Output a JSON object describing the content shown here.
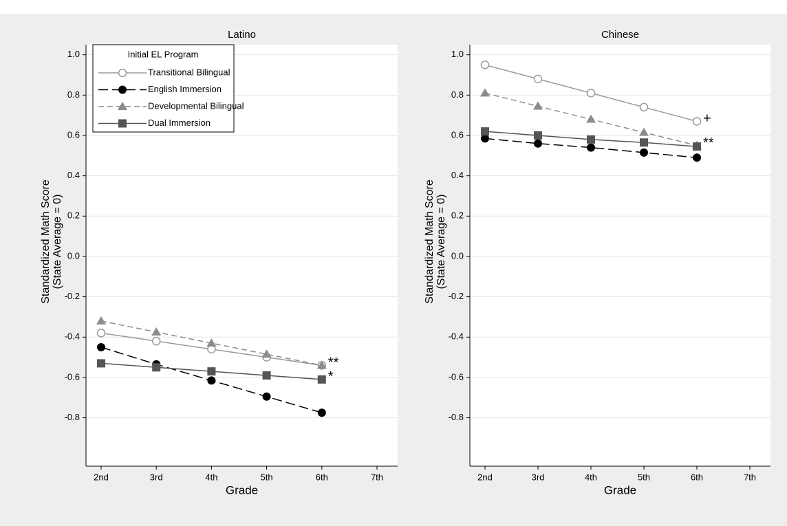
{
  "chart_data": [
    {
      "type": "line",
      "title": "Latino",
      "x_label": "Grade",
      "y_label": [
        "Standardized Math Score",
        "(State Average = 0)"
      ],
      "categories": [
        "2nd",
        "3rd",
        "4th",
        "5th",
        "6th",
        "7th"
      ],
      "ylim": [
        -1.04,
        1.05
      ],
      "yticks": [
        {
          "value": 1,
          "label": "1.0"
        },
        0.8,
        0.6,
        0.4,
        0.2,
        {
          "value": 0,
          "label": "0.0"
        },
        -0.2,
        -0.4,
        -0.6,
        -0.8
      ],
      "grid": true,
      "legend": {
        "title": "Initial EL Program",
        "position": "upper left"
      },
      "series": [
        {
          "name": "Transitional Bilingual",
          "color": "#999999",
          "marker": "hollow-circle",
          "dash": "solid",
          "values": [
            -0.38,
            -0.42,
            -0.46,
            -0.5,
            -0.54,
            null
          ],
          "annotation": "**"
        },
        {
          "name": "English Immersion",
          "color": "#000000",
          "marker": "circle",
          "dash": "long",
          "values": [
            -0.45,
            -0.535,
            -0.615,
            -0.695,
            -0.775,
            null
          ]
        },
        {
          "name": "Developmental Bilingual",
          "color": "#8c8c8c",
          "marker": "triangle",
          "dash": "short",
          "values": [
            -0.32,
            -0.375,
            -0.43,
            -0.485,
            -0.54,
            null
          ]
        },
        {
          "name": "Dual Immersion",
          "color": "#555555",
          "marker": "square",
          "dash": "solid",
          "values": [
            -0.53,
            -0.55,
            -0.57,
            -0.59,
            -0.61,
            null
          ],
          "annotation": "*"
        }
      ]
    },
    {
      "type": "line",
      "title": "Chinese",
      "x_label": "Grade",
      "y_label": [
        "Standardized Math Score",
        "(State Average = 0)"
      ],
      "categories": [
        "2nd",
        "3rd",
        "4th",
        "5th",
        "6th",
        "7th"
      ],
      "ylim": [
        -1.04,
        1.05
      ],
      "yticks": [
        {
          "value": 1,
          "label": "1.0"
        },
        0.8,
        0.6,
        0.4,
        0.2,
        {
          "value": 0,
          "label": "0.0"
        },
        -0.2,
        -0.4,
        -0.6,
        -0.8
      ],
      "grid": true,
      "series": [
        {
          "color": "#999999",
          "marker": "hollow-circle",
          "dash": "solid",
          "values": [
            0.95,
            0.88,
            0.81,
            0.74,
            0.67,
            null
          ],
          "annotation": "+"
        },
        {
          "color": "#000000",
          "marker": "circle",
          "dash": "long",
          "values": [
            0.585,
            0.56,
            0.54,
            0.515,
            0.49,
            null
          ]
        },
        {
          "color": "#8c8c8c",
          "marker": "triangle",
          "dash": "short",
          "values": [
            0.81,
            0.745,
            0.68,
            0.615,
            0.55,
            null
          ],
          "annotation": "**"
        },
        {
          "color": "#555555",
          "marker": "square",
          "dash": "solid",
          "values": [
            0.62,
            0.6,
            0.58,
            0.565,
            0.545,
            null
          ]
        }
      ]
    }
  ]
}
